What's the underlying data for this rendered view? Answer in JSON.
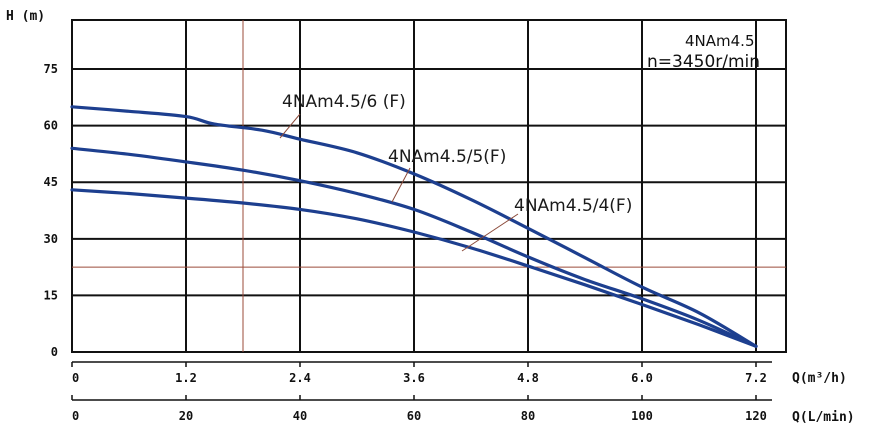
{
  "chart_data": {
    "type": "line",
    "y_axis": {
      "label": "H (m)",
      "ticks": [
        0,
        15,
        30,
        45,
        60,
        75
      ],
      "ylim": [
        0,
        88
      ]
    },
    "x_axis_top": {
      "label": "Q(m³/h)",
      "ticks": [
        "0",
        "1.2",
        "2.4",
        "3.6",
        "4.8",
        "6.0",
        "7.2"
      ],
      "xlim": [
        0,
        7.2
      ]
    },
    "x_axis_bottom": {
      "label": "Q(L/min)",
      "ticks": [
        "0",
        "20",
        "40",
        "60",
        "80",
        "100",
        "120"
      ],
      "xlim": [
        0,
        120
      ]
    },
    "model": "4NAm4.5",
    "speed": "n=3450r/min",
    "grid": true,
    "series": [
      {
        "name": "4NAm4.5/6 (F)",
        "color": "#1d3f8f",
        "x": [
          0,
          0.6,
          1.2,
          1.5,
          2.0,
          2.4,
          3.0,
          3.6,
          4.2,
          4.8,
          5.4,
          6.0,
          6.6,
          7.2
        ],
        "y": [
          65,
          63.8,
          62.4,
          60.4,
          58.8,
          56.4,
          52.8,
          47.2,
          40.4,
          32.8,
          25,
          17.2,
          10.4,
          1.5
        ]
      },
      {
        "name": "4NAm4.5/5(F)",
        "color": "#1d3f8f",
        "x": [
          0,
          0.6,
          1.2,
          1.8,
          2.4,
          3.0,
          3.6,
          4.2,
          4.8,
          5.4,
          6.0,
          6.6,
          7.2
        ],
        "y": [
          54,
          52.4,
          50.4,
          48.2,
          45.4,
          42,
          37.8,
          31.8,
          25.2,
          19.2,
          14.1,
          8.4,
          1.5
        ]
      },
      {
        "name": "4NAm4.5/4(F)",
        "color": "#1d3f8f",
        "x": [
          0,
          0.6,
          1.2,
          1.8,
          2.4,
          3.0,
          3.6,
          4.2,
          4.8,
          5.4,
          6.0,
          6.6,
          7.2
        ],
        "y": [
          43,
          42,
          40.8,
          39.5,
          37.8,
          35.3,
          31.8,
          27.6,
          22.8,
          17.8,
          12.6,
          7.2,
          1.5
        ]
      }
    ],
    "reference_lines": {
      "x_m3h": 1.8,
      "y_m": 22.5,
      "color": "#9b4b3a"
    }
  }
}
